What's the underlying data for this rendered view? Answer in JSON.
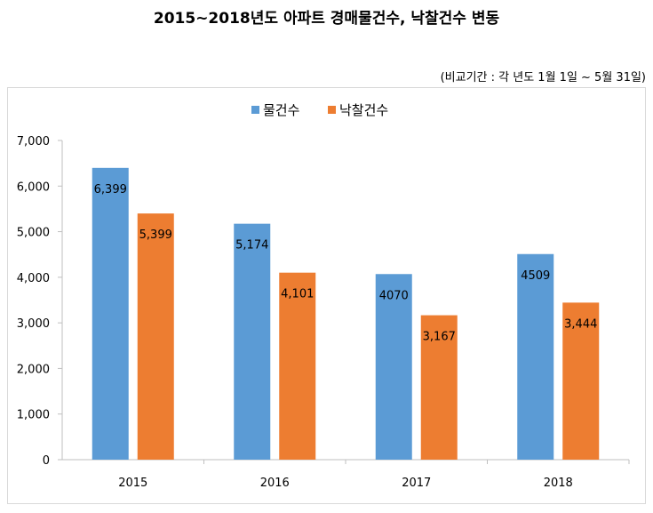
{
  "chart_data": {
    "type": "bar",
    "title": "2015~2018년도 아파트 경매물건수, 낙찰건수 변동",
    "subtitle": "(비교기간 : 각 년도 1월 1일 ~ 5월 31일)",
    "categories": [
      "2015",
      "2016",
      "2017",
      "2018"
    ],
    "series": [
      {
        "name": "물건수",
        "values": [
          6399,
          5174,
          4070,
          4509
        ],
        "labels": [
          "6,399",
          "5,174",
          "4070",
          "4509"
        ],
        "color": "#5b9bd5"
      },
      {
        "name": "낙찰건수",
        "values": [
          5399,
          4101,
          3167,
          3444
        ],
        "labels": [
          "5,399",
          "4,101",
          "3,167",
          "3,444"
        ],
        "color": "#ed7d31"
      }
    ],
    "yticks": [
      "0",
      "1,000",
      "2,000",
      "3,000",
      "4,000",
      "5,000",
      "6,000",
      "7,000"
    ],
    "ylim": [
      0,
      7000
    ],
    "grid": false,
    "legend": "top-center"
  }
}
